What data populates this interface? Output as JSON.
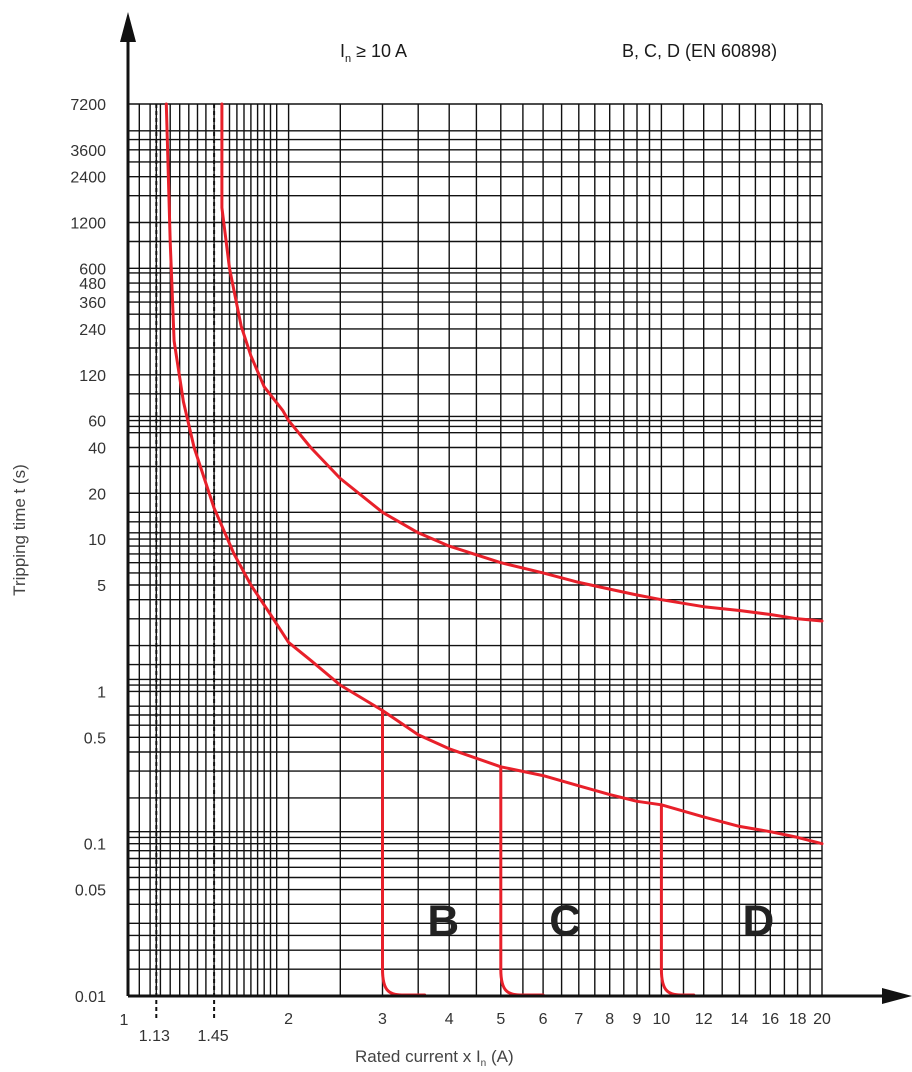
{
  "chart_data": {
    "type": "line",
    "title_left": "I",
    "title_left_sub": "n",
    "title_left_rest": " ≥ 10 A",
    "title_right": "B, C, D (EN 60898)",
    "xlabel_main": "Rated current  x  I",
    "xlabel_sub": "n",
    "xlabel_rest": " (A)",
    "ylabel": "Tripping time  t (s)",
    "x_scale": "log",
    "y_scale": "log",
    "xlim": [
      1,
      20
    ],
    "ylim": [
      0.01,
      7200
    ],
    "grid": true,
    "x_ticks": [
      {
        "v": 1,
        "label": "1"
      },
      {
        "v": 1.13,
        "label": "1.13"
      },
      {
        "v": 1.45,
        "label": "1.45"
      },
      {
        "v": 2,
        "label": "2"
      },
      {
        "v": 3,
        "label": "3"
      },
      {
        "v": 4,
        "label": "4"
      },
      {
        "v": 5,
        "label": "5"
      },
      {
        "v": 6,
        "label": "6"
      },
      {
        "v": 7,
        "label": "7"
      },
      {
        "v": 8,
        "label": "8"
      },
      {
        "v": 9,
        "label": "9"
      },
      {
        "v": 10,
        "label": "10"
      },
      {
        "v": 12,
        "label": "12"
      },
      {
        "v": 14,
        "label": "14"
      },
      {
        "v": 16,
        "label": "16"
      },
      {
        "v": 18,
        "label": "18"
      },
      {
        "v": 20,
        "label": "20"
      }
    ],
    "y_ticks": [
      {
        "v": 7200,
        "label": "7200"
      },
      {
        "v": 3600,
        "label": "3600"
      },
      {
        "v": 2400,
        "label": "2400"
      },
      {
        "v": 1200,
        "label": "1200"
      },
      {
        "v": 600,
        "label": "600"
      },
      {
        "v": 480,
        "label": "480"
      },
      {
        "v": 360,
        "label": "360"
      },
      {
        "v": 240,
        "label": "240"
      },
      {
        "v": 120,
        "label": "120"
      },
      {
        "v": 60,
        "label": "60"
      },
      {
        "v": 40,
        "label": "40"
      },
      {
        "v": 20,
        "label": "20"
      },
      {
        "v": 10,
        "label": "10"
      },
      {
        "v": 5,
        "label": "5"
      },
      {
        "v": 1,
        "label": "1"
      },
      {
        "v": 0.5,
        "label": "0.5"
      },
      {
        "v": 0.1,
        "label": "0.1"
      },
      {
        "v": 0.05,
        "label": "0.05"
      },
      {
        "v": 0.01,
        "label": "0.01"
      }
    ],
    "x_grid": [
      1,
      1.05,
      1.1,
      1.13,
      1.15,
      1.2,
      1.25,
      1.3,
      1.35,
      1.4,
      1.45,
      1.5,
      1.55,
      1.6,
      1.65,
      1.7,
      1.75,
      1.8,
      1.85,
      1.9,
      2,
      2.5,
      3,
      3.5,
      4,
      4.5,
      5,
      5.5,
      6,
      6.5,
      7,
      7.5,
      8,
      8.5,
      9,
      9.5,
      10,
      11,
      12,
      13,
      14,
      15,
      16,
      17,
      18,
      19,
      20
    ],
    "y_grid": [
      7200,
      4800,
      4200,
      3600,
      3000,
      2400,
      1800,
      1200,
      900,
      600,
      560,
      480,
      420,
      360,
      300,
      240,
      180,
      120,
      90,
      64,
      60,
      55,
      50,
      40,
      30,
      20,
      15,
      13,
      11,
      10,
      9,
      8,
      7,
      6,
      5,
      4,
      3,
      2,
      1.5,
      1.2,
      1.1,
      1,
      0.8,
      0.7,
      0.6,
      0.5,
      0.4,
      0.3,
      0.2,
      0.12,
      0.11,
      0.1,
      0.09,
      0.08,
      0.07,
      0.06,
      0.05,
      0.04,
      0.03,
      0.025,
      0.02,
      0.015,
      0.01
    ],
    "reference_lines": [
      1.13,
      1.45
    ],
    "series": [
      {
        "label": "",
        "points": [
          [
            1.18,
            7200
          ],
          [
            1.2,
            900
          ],
          [
            1.22,
            200
          ],
          [
            1.27,
            80
          ],
          [
            1.33,
            40
          ],
          [
            1.45,
            16
          ],
          [
            1.58,
            8
          ],
          [
            1.7,
            5
          ],
          [
            1.85,
            3.2
          ],
          [
            2,
            2.1
          ],
          [
            2.2,
            1.6
          ],
          [
            2.5,
            1.1
          ],
          [
            3,
            0.75
          ],
          [
            3.5,
            0.52
          ],
          [
            4,
            0.42
          ],
          [
            5,
            0.32
          ],
          [
            6,
            0.28
          ],
          [
            7,
            0.24
          ],
          [
            8,
            0.21
          ],
          [
            9,
            0.19
          ],
          [
            10,
            0.18
          ],
          [
            12,
            0.15
          ],
          [
            14,
            0.13
          ],
          [
            16,
            0.12
          ],
          [
            18,
            0.11
          ],
          [
            20,
            0.1
          ]
        ]
      },
      {
        "label": "",
        "points": [
          [
            1.5,
            7200
          ],
          [
            1.5,
            1500
          ],
          [
            1.55,
            600
          ],
          [
            1.63,
            250
          ],
          [
            1.7,
            160
          ],
          [
            1.8,
            100
          ],
          [
            1.95,
            70
          ],
          [
            2,
            60
          ],
          [
            2.2,
            40
          ],
          [
            2.5,
            25
          ],
          [
            3,
            15
          ],
          [
            3.5,
            11
          ],
          [
            4,
            9
          ],
          [
            5,
            7
          ],
          [
            6,
            6
          ],
          [
            7,
            5.2
          ],
          [
            8,
            4.7
          ],
          [
            9,
            4.3
          ],
          [
            10,
            4
          ],
          [
            12,
            3.6
          ],
          [
            14,
            3.4
          ],
          [
            16,
            3.2
          ],
          [
            18,
            3
          ],
          [
            20,
            2.9
          ]
        ]
      }
    ],
    "drops": [
      {
        "label": "B",
        "x": 3,
        "from": 0.75,
        "to": 0.015,
        "foot_end": 3.6
      },
      {
        "label": "C",
        "x": 5,
        "from": 0.32,
        "to": 0.015,
        "foot_end": 6.0
      },
      {
        "label": "D",
        "x": 10,
        "from": 0.18,
        "to": 0.015,
        "foot_end": 11.5
      }
    ],
    "curve_labels": [
      {
        "text": "B",
        "x": 3.9,
        "y": 0.025
      },
      {
        "text": "C",
        "x": 6.6,
        "y": 0.025
      },
      {
        "text": "D",
        "x": 15.2,
        "y": 0.025
      }
    ],
    "colors": {
      "curve": "#e8202a",
      "grid": "#111111"
    }
  }
}
